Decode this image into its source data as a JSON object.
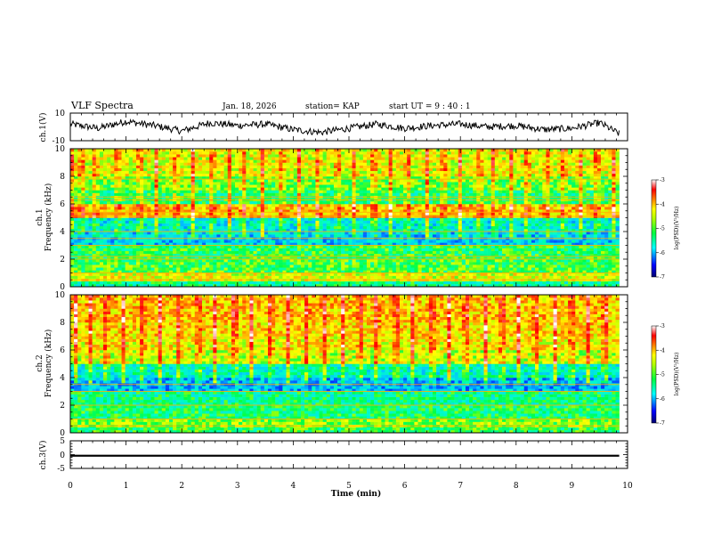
{
  "header": {
    "title": "VLF Spectra",
    "date": "Jan. 18, 2026",
    "station": "station= KAP",
    "start_ut": "start  UT =  9 : 40 : 1"
  },
  "colors": {
    "spectrum_scale": [
      "#00008f",
      "#0000ff",
      "#00bfff",
      "#00ffff",
      "#00ff80",
      "#7fff00",
      "#ffff00",
      "#ffa500",
      "#ff0000",
      "#ffffff"
    ]
  },
  "chart_data": [
    {
      "id": "ch1_waveform",
      "type": "line",
      "ylabel": "ch.1(V)",
      "ylim": [
        -10,
        10
      ],
      "yticks": [
        "10",
        "-10"
      ],
      "xlim": [
        0,
        10
      ],
      "trace_x_end_min": 9.85,
      "trace_approx_range": [
        -6,
        6
      ],
      "series": [
        {
          "name": "ch.1",
          "x": [
            0,
            0.5,
            1,
            1.5,
            2,
            2.5,
            3,
            3.5,
            4,
            4.5,
            5,
            5.5,
            6,
            6.5,
            7,
            7.5,
            8,
            8.5,
            9,
            9.5,
            9.85
          ],
          "values": [
            2,
            -1,
            4,
            1,
            -3,
            3,
            1,
            2,
            -2,
            -4,
            -1,
            2,
            -1,
            1,
            2,
            0,
            1,
            -2,
            -1,
            3,
            -5
          ]
        }
      ]
    },
    {
      "id": "ch1_spectrogram",
      "type": "heatmap",
      "ylabel_line1": "ch.1",
      "ylabel_line2": "Frequency (kHz)",
      "ylim": [
        0,
        10
      ],
      "yticks": [
        "0",
        "2",
        "4",
        "6",
        "8",
        "10"
      ],
      "xlim": [
        0,
        10
      ],
      "data_x_end_min": 9.85,
      "colorbar_label": "log(PSD)(V²/Hz)",
      "colorbar_ticks": [
        "-3",
        "-4",
        "-5",
        "-6",
        "-7"
      ],
      "colorbar_range": [
        -7,
        -3
      ],
      "band_levels_by_kHz": {
        "0-0.5": -5.4,
        "0.5-1": -4.6,
        "1-2": -5.1,
        "2-3": -5.2,
        "3-4": -5.9,
        "4-5": -5.7,
        "5-6": -4.3,
        "6-7": -5.3,
        "7-8": -5.0,
        "8-10": -4.6
      },
      "horizontal_lines_kHz": [
        0.5,
        1.0,
        2.0,
        2.2,
        3.0,
        3.5,
        4.0,
        5.1,
        5.4,
        6.3,
        6.5,
        7.8
      ],
      "strong_burst_times_min": [
        0.05,
        0.2,
        0.45,
        0.85,
        1.25,
        1.55,
        1.9,
        2.2,
        2.55,
        2.85,
        3.1,
        3.45,
        3.8,
        4.1,
        4.45,
        4.8,
        5.1,
        5.45,
        5.75,
        6.05,
        6.4,
        6.7,
        7.0,
        7.35,
        7.6,
        7.9,
        8.2,
        8.55,
        8.85,
        9.15,
        9.45,
        9.75
      ]
    },
    {
      "id": "ch2_spectrogram",
      "type": "heatmap",
      "ylabel_line1": "ch.2",
      "ylabel_line2": "Frequency (kHz)",
      "ylim": [
        0,
        10
      ],
      "yticks": [
        "0",
        "2",
        "4",
        "6",
        "8",
        "10"
      ],
      "xlim": [
        0,
        10
      ],
      "data_x_end_min": 9.85,
      "colorbar_label": "log(PSD)(V²/Hz)",
      "colorbar_ticks": [
        "-3",
        "-4",
        "-5",
        "-6",
        "-7"
      ],
      "colorbar_range": [
        -7,
        -3
      ],
      "band_levels_by_kHz": {
        "0-0.5": -5.2,
        "0.5-1": -4.9,
        "1-2": -5.3,
        "2-3": -5.4,
        "3-4": -6.0,
        "4-5": -5.6,
        "5-6": -4.7,
        "6-7": -4.5,
        "7-8": -4.4,
        "8-10": -4.3
      },
      "horizontal_lines_kHz": [
        0.5,
        1.0,
        2.0,
        3.0,
        3.5
      ],
      "strong_burst_times_min": [
        0.1,
        0.35,
        0.65,
        0.95,
        1.3,
        1.6,
        1.95,
        2.3,
        2.6,
        2.95,
        3.25,
        3.6,
        3.9,
        4.25,
        4.55,
        4.9,
        5.2,
        5.5,
        5.85,
        6.15,
        6.5,
        6.8,
        7.1,
        7.45,
        7.75,
        8.05,
        8.35,
        8.7,
        9.0,
        9.3,
        9.6
      ]
    },
    {
      "id": "ch3_waveform",
      "type": "line",
      "ylabel": "ch.3(V)",
      "ylim": [
        -5,
        5
      ],
      "yticks": [
        "5",
        "0",
        "-5"
      ],
      "xlim": [
        0,
        10
      ],
      "trace_x_end_min": 9.85,
      "series": [
        {
          "name": "ch.3",
          "x": [
            0,
            9.85
          ],
          "values": [
            -0.4,
            -0.4
          ],
          "band_halfwidth": 0.35
        }
      ],
      "xlabel": "Time (min)",
      "xticks": [
        "0",
        "1",
        "2",
        "3",
        "4",
        "5",
        "6",
        "7",
        "8",
        "9",
        "10"
      ]
    }
  ]
}
